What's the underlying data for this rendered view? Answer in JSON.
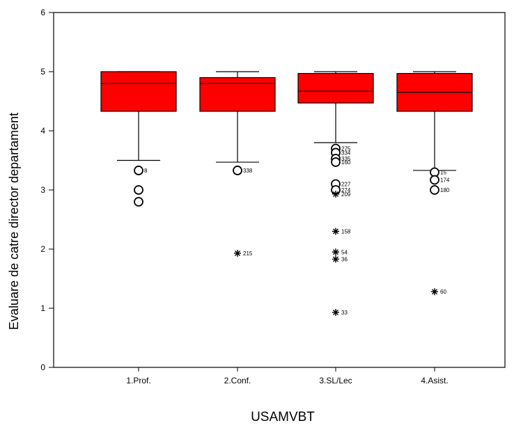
{
  "chart_data": {
    "type": "box",
    "title": "",
    "xlabel": "USAMVBT",
    "ylabel": "Evaluare de catre director departament",
    "ylim": [
      0,
      6
    ],
    "yticks": [
      0,
      1,
      2,
      3,
      4,
      5,
      6
    ],
    "grid": false,
    "box_color": "#ff0000",
    "categories": [
      "1.Prof.",
      "2.Conf.",
      "3.SL/Lec",
      "4.Asist."
    ],
    "boxes": [
      {
        "category": "1.Prof.",
        "whisker_low": 3.5,
        "q1": 4.33,
        "median": 4.8,
        "q3": 5.0,
        "whisker_high": 5.0,
        "outliers": [
          {
            "value": 3.33,
            "label": "8",
            "marker": "circle"
          },
          {
            "value": 3.0,
            "label": "",
            "marker": "circle"
          },
          {
            "value": 2.8,
            "label": "",
            "marker": "circle"
          }
        ]
      },
      {
        "category": "2.Conf.",
        "whisker_low": 3.47,
        "q1": 4.33,
        "median": 4.8,
        "q3": 4.9,
        "whisker_high": 5.0,
        "outliers": [
          {
            "value": 3.33,
            "label": "338",
            "marker": "circle"
          },
          {
            "value": 1.93,
            "label": "215",
            "marker": "star"
          }
        ]
      },
      {
        "category": "3.SL/Lec",
        "whisker_low": 3.8,
        "q1": 4.47,
        "median": 4.67,
        "q3": 4.97,
        "whisker_high": 5.0,
        "outliers": [
          {
            "value": 3.7,
            "label": "275",
            "marker": "circle"
          },
          {
            "value": 3.63,
            "label": "334",
            "marker": "circle"
          },
          {
            "value": 3.53,
            "label": "335",
            "marker": "circle"
          },
          {
            "value": 3.47,
            "label": "160",
            "marker": "circle"
          },
          {
            "value": 3.1,
            "label": "227",
            "marker": "circle"
          },
          {
            "value": 3.0,
            "label": "274",
            "marker": "circle"
          },
          {
            "value": 2.93,
            "label": "209",
            "marker": "star"
          },
          {
            "value": 2.3,
            "label": "158",
            "marker": "star"
          },
          {
            "value": 1.95,
            "label": "54",
            "marker": "star"
          },
          {
            "value": 1.83,
            "label": "36",
            "marker": "star"
          },
          {
            "value": 0.93,
            "label": "33",
            "marker": "star"
          }
        ]
      },
      {
        "category": "4.Asist.",
        "whisker_low": 3.33,
        "q1": 4.33,
        "median": 4.65,
        "q3": 4.97,
        "whisker_high": 5.0,
        "outliers": [
          {
            "value": 3.3,
            "label": "15",
            "marker": "circle"
          },
          {
            "value": 3.17,
            "label": "174",
            "marker": "circle"
          },
          {
            "value": 3.0,
            "label": "180",
            "marker": "circle"
          },
          {
            "value": 1.28,
            "label": "60",
            "marker": "star"
          }
        ]
      }
    ]
  }
}
